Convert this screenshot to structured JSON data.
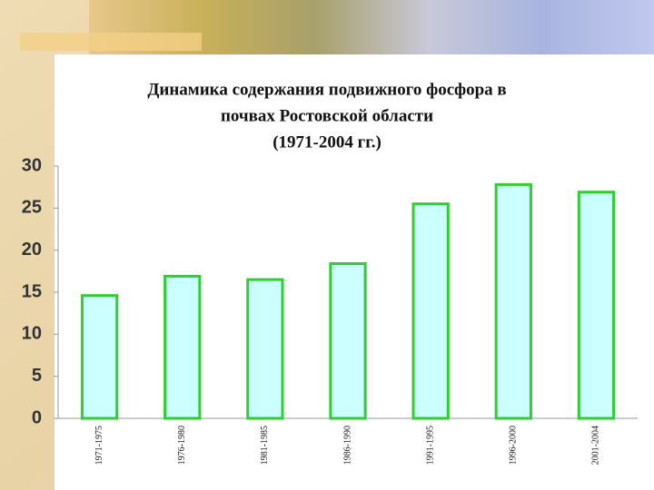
{
  "chart_data": {
    "type": "bar",
    "title": [
      "Динамика содержания подвижного фосфора в",
      "почвах Ростовской области",
      "(1971-2004 гг.)"
    ],
    "categories": [
      "1971-1975",
      "1976-1980",
      "1981-1985",
      "1986-1990",
      "1991-1995",
      "1996-2000",
      "2001-2004"
    ],
    "values": [
      14.6,
      16.9,
      16.5,
      18.4,
      25.5,
      27.8,
      26.9
    ],
    "color": "#ccffff",
    "edge_color": "#33cc33",
    "ylim": [
      0,
      30
    ],
    "yticks": [
      0,
      5,
      10,
      15,
      20,
      25,
      30
    ],
    "grid": false
  }
}
